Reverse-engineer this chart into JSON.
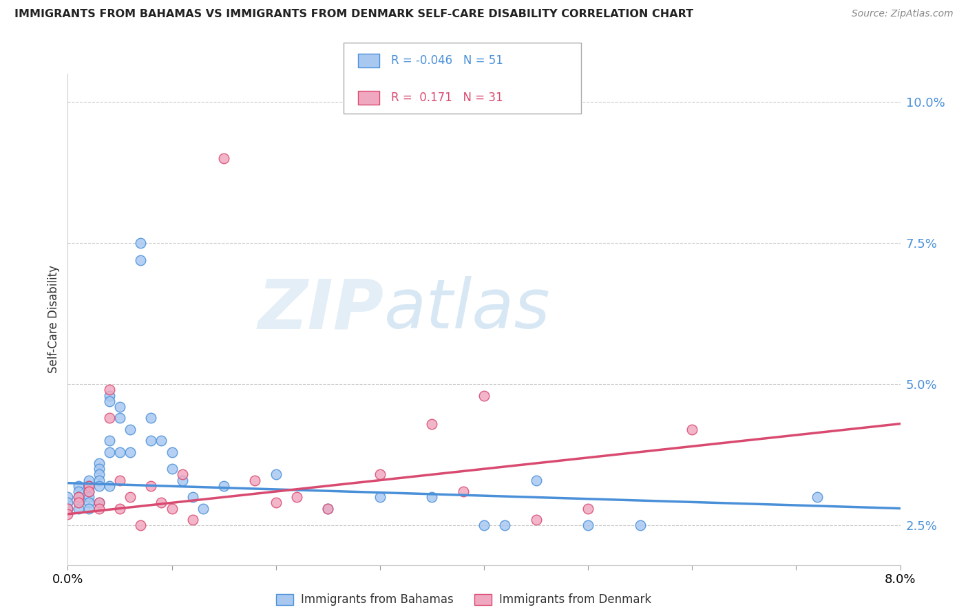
{
  "title": "IMMIGRANTS FROM BAHAMAS VS IMMIGRANTS FROM DENMARK SELF-CARE DISABILITY CORRELATION CHART",
  "source": "Source: ZipAtlas.com",
  "ylabel": "Self-Care Disability",
  "x_range": [
    0.0,
    0.08
  ],
  "y_range": [
    0.018,
    0.105
  ],
  "series1_label": "Immigrants from Bahamas",
  "series1_R": "-0.046",
  "series1_N": "51",
  "series1_color": "#a8c8f0",
  "series1_line_color": "#4a90d9",
  "series2_label": "Immigrants from Denmark",
  "series2_R": "0.171",
  "series2_N": "31",
  "series2_color": "#f0a8c0",
  "series2_line_color": "#d94a70",
  "background_color": "#ffffff",
  "grid_color": "#cccccc",
  "watermark_zip": "ZIP",
  "watermark_atlas": "atlas",
  "series1_x": [
    0.0,
    0.0,
    0.0,
    0.001,
    0.001,
    0.001,
    0.001,
    0.001,
    0.002,
    0.002,
    0.002,
    0.002,
    0.002,
    0.002,
    0.003,
    0.003,
    0.003,
    0.003,
    0.003,
    0.003,
    0.004,
    0.004,
    0.004,
    0.004,
    0.004,
    0.005,
    0.005,
    0.005,
    0.006,
    0.006,
    0.007,
    0.007,
    0.008,
    0.008,
    0.009,
    0.01,
    0.01,
    0.011,
    0.012,
    0.013,
    0.015,
    0.02,
    0.025,
    0.03,
    0.035,
    0.04,
    0.042,
    0.045,
    0.05,
    0.055,
    0.072
  ],
  "series1_y": [
    0.03,
    0.029,
    0.028,
    0.032,
    0.031,
    0.03,
    0.029,
    0.028,
    0.033,
    0.032,
    0.031,
    0.03,
    0.029,
    0.028,
    0.036,
    0.035,
    0.034,
    0.033,
    0.032,
    0.029,
    0.048,
    0.047,
    0.04,
    0.038,
    0.032,
    0.046,
    0.044,
    0.038,
    0.042,
    0.038,
    0.075,
    0.072,
    0.044,
    0.04,
    0.04,
    0.038,
    0.035,
    0.033,
    0.03,
    0.028,
    0.032,
    0.034,
    0.028,
    0.03,
    0.03,
    0.025,
    0.025,
    0.033,
    0.025,
    0.025,
    0.03
  ],
  "series2_x": [
    0.0,
    0.0,
    0.001,
    0.001,
    0.002,
    0.002,
    0.003,
    0.003,
    0.004,
    0.004,
    0.005,
    0.005,
    0.006,
    0.007,
    0.008,
    0.009,
    0.01,
    0.011,
    0.012,
    0.015,
    0.018,
    0.02,
    0.022,
    0.025,
    0.03,
    0.035,
    0.038,
    0.04,
    0.045,
    0.05,
    0.06
  ],
  "series2_y": [
    0.028,
    0.027,
    0.03,
    0.029,
    0.032,
    0.031,
    0.029,
    0.028,
    0.049,
    0.044,
    0.033,
    0.028,
    0.03,
    0.025,
    0.032,
    0.029,
    0.028,
    0.034,
    0.026,
    0.09,
    0.033,
    0.029,
    0.03,
    0.028,
    0.034,
    0.043,
    0.031,
    0.048,
    0.026,
    0.028,
    0.042
  ],
  "trend1_x0": 0.0,
  "trend1_y0": 0.0325,
  "trend1_x1": 0.08,
  "trend1_y1": 0.028,
  "trend2_x0": 0.0,
  "trend2_y0": 0.027,
  "trend2_x1": 0.08,
  "trend2_y1": 0.043
}
